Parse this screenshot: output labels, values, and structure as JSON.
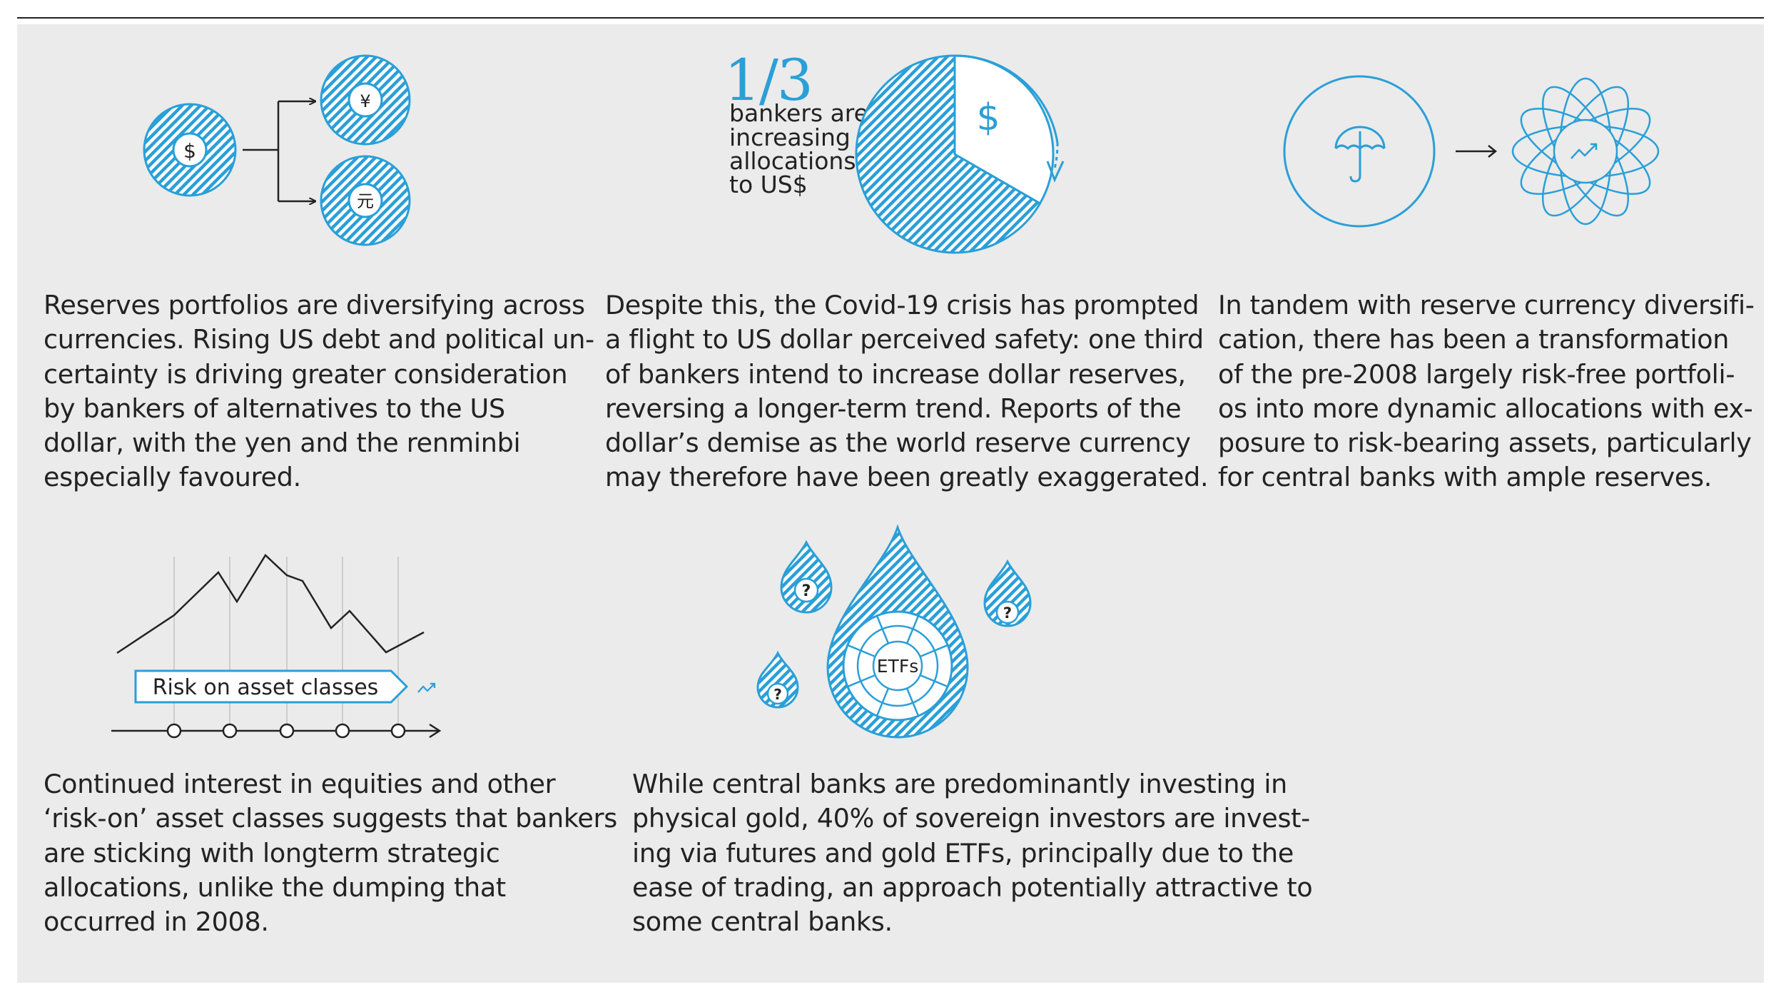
{
  "colors": {
    "accent": "#2a9fd8",
    "text": "#222222",
    "panel": "#ebebeb",
    "rule": "#222222"
  },
  "panels": {
    "currencies": {
      "icons": [
        "dollar-coin-icon",
        "yen-coin-icon",
        "yuan-coin-icon",
        "branch-arrow-icon"
      ],
      "symbols": {
        "dollar": "$",
        "yen": "¥",
        "yuan": "元"
      },
      "lines": [
        "Reserves portfolios are diversifying across",
        "currencies. Rising US debt and political un-",
        "certainty is driving greater consideration",
        "by bankers of alternatives to the US",
        "dollar, with the yen and the renminbi",
        "especially favoured."
      ]
    },
    "dollar_share": {
      "fraction": "1/3",
      "fraction_value": 0.3333,
      "caption_lines": [
        "bankers are",
        "increasing",
        "allocations",
        "to US$"
      ],
      "pie_symbol": "$",
      "icons": [
        "pie-chart-icon",
        "rotation-arrow-icon"
      ],
      "lines": [
        "Despite this, the Covid-19 crisis has prompted",
        "a flight to US dollar perceived safety: one third",
        "of bankers intend to increase dollar reserves,",
        "reversing a longer-term trend. Reports of the",
        "dollar’s demise as the world reserve currency",
        "may therefore have been greatly exaggerated."
      ]
    },
    "risk_transformation": {
      "icons": [
        "umbrella-circle-icon",
        "arrow-right-icon",
        "orbit-sphere-icon",
        "trend-up-icon"
      ],
      "lines": [
        "In tandem with reserve currency diversifi-",
        "cation, there has been a transformation",
        "of the pre-2008 largely risk-free portfoli-",
        "os into more dynamic allocations with ex-",
        "posure to risk-bearing assets, particularly",
        "for central banks with ample reserves."
      ]
    },
    "risk_on": {
      "banner_label": "Risk on asset classes",
      "icons": [
        "line-chart-icon",
        "timeline-icon",
        "trend-up-icon"
      ],
      "lines": [
        "Continued interest in equities and other",
        "‘risk-on’ asset classes suggests that bankers",
        "are sticking with longterm strategic",
        "allocations, unlike the dumping that",
        "occurred in 2008."
      ]
    },
    "gold_etfs": {
      "center_label": "ETFs",
      "question_mark": "?",
      "icons": [
        "large-drop-icon",
        "question-drop-icon"
      ],
      "lines": [
        "While central banks are predominantly investing in",
        "physical gold, 40% of sovereign investors are invest-",
        "ing via futures and gold ETFs, principally due to the",
        "ease of trading, an approach potentially attractive to",
        "some central banks."
      ]
    }
  }
}
